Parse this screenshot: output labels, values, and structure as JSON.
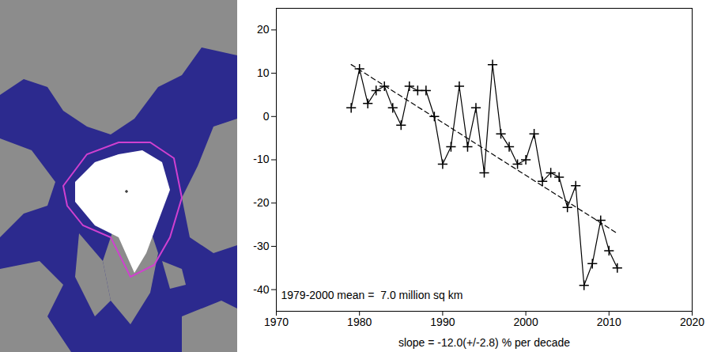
{
  "chart_data": {
    "type": "line",
    "x": [
      1979,
      1980,
      1981,
      1982,
      1983,
      1984,
      1985,
      1986,
      1987,
      1988,
      1989,
      1990,
      1991,
      1992,
      1993,
      1994,
      1995,
      1996,
      1997,
      1998,
      1999,
      2000,
      2001,
      2002,
      2003,
      2004,
      2005,
      2006,
      2007,
      2008,
      2009,
      2010,
      2011
    ],
    "values": [
      2,
      11,
      3,
      6,
      7,
      2,
      -2,
      7,
      6,
      6,
      0,
      -11,
      -7,
      7,
      -7,
      2,
      -13,
      12,
      -4,
      -7,
      -11,
      -10,
      -4,
      -15,
      -13,
      -14,
      -21,
      -16,
      -39,
      -34,
      -24,
      -31,
      -35
    ],
    "color": "#000000",
    "marker": "plus",
    "line_style": "solid",
    "trend": {
      "x": [
        1979,
        2011
      ],
      "values": [
        12,
        -27
      ],
      "line_style": "dashed"
    },
    "xlim": [
      1970,
      2020
    ],
    "xticks": [
      1970,
      1980,
      1990,
      2000,
      2010,
      2020
    ],
    "ylim": [
      -45,
      25
    ],
    "yticks": [
      -40,
      -30,
      -20,
      -10,
      0,
      10,
      20
    ],
    "xlabel": "slope = -12.0(+/-2.8) % per decade",
    "annotations": [
      "1979-2000 mean =  7.0 million sq km"
    ]
  }
}
